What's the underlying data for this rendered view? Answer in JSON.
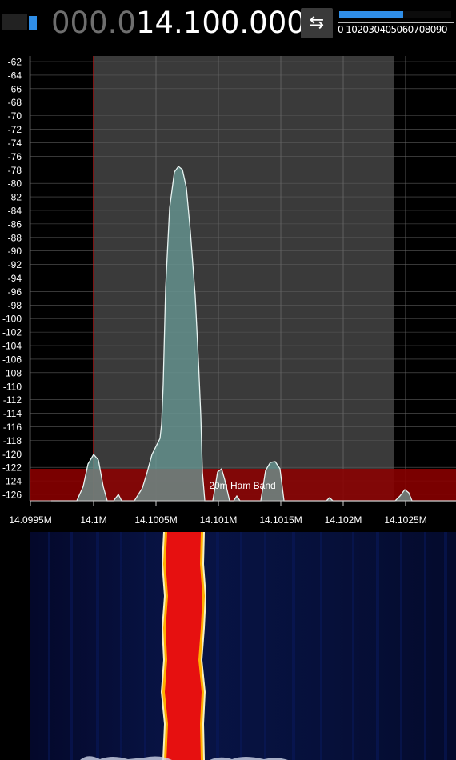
{
  "frequency": {
    "dim_part": "000.0",
    "bright_part": "14.100.000"
  },
  "swap_button": {
    "icon": "swap-arrows-icon",
    "glyph": "⇆"
  },
  "volume": {
    "level_percent": 57,
    "scale_labels": "0 102030405060708090"
  },
  "spectrum": {
    "y_ticks": [
      "-62",
      "-64",
      "-66",
      "-68",
      "-70",
      "-72",
      "-74",
      "-76",
      "-78",
      "-80",
      "-82",
      "-84",
      "-86",
      "-88",
      "-90",
      "-92",
      "-94",
      "-96",
      "-98",
      "-100",
      "-102",
      "-104",
      "-106",
      "-108",
      "-110",
      "-112",
      "-114",
      "-116",
      "-118",
      "-120",
      "-122",
      "-124",
      "-126"
    ],
    "x_ticks": [
      "14.0995M",
      "14.1M",
      "14.1005M",
      "14.101M",
      "14.1015M",
      "14.102M",
      "14.1025M"
    ],
    "band_label": "20m Ham Band",
    "colors": {
      "passband": "#3a3a3a",
      "band": "#8b0000",
      "trace": "#e8f4f2",
      "fill": "#6a9c98",
      "tuned_line": "#d02020"
    }
  }
}
